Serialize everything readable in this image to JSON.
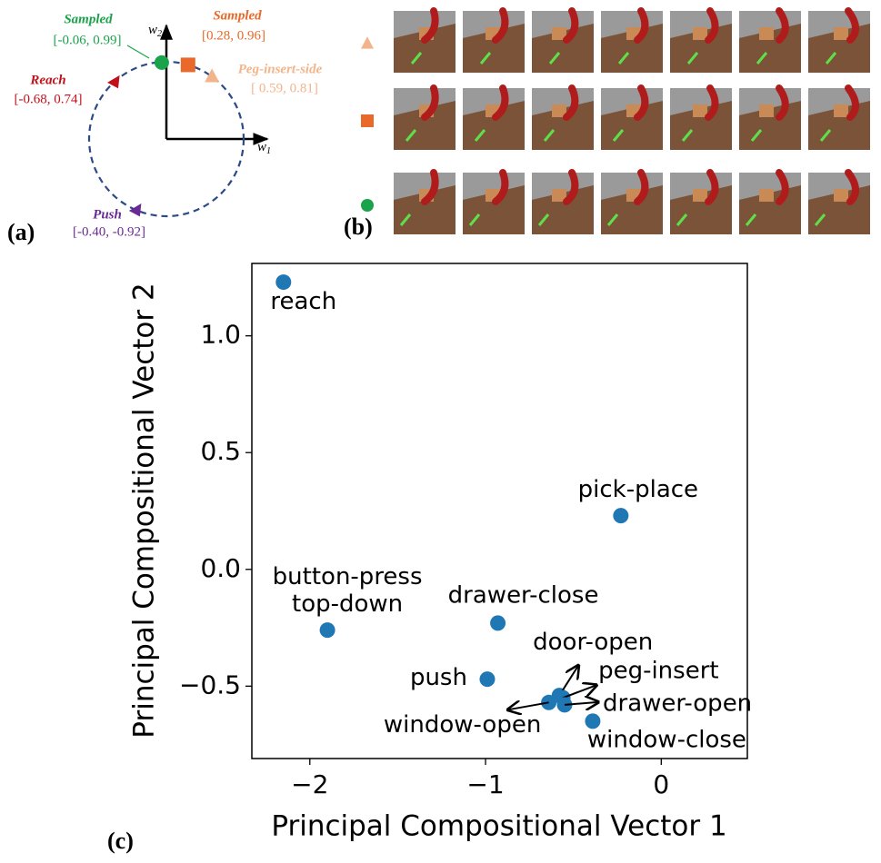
{
  "panel_a": {
    "label": "(a)",
    "y_axis": {
      "main": "w",
      "sub": "2"
    },
    "x_axis": {
      "main": "w",
      "sub": "1"
    },
    "points": [
      {
        "name": "Sampled",
        "coords": "[-0.06, 0.99]",
        "x": -0.06,
        "y": 0.99,
        "color": "#1aa34a",
        "marker": "circle"
      },
      {
        "name": "Sampled",
        "coords": "[0.28, 0.96]",
        "x": 0.28,
        "y": 0.96,
        "color": "#e8692a",
        "marker": "square"
      },
      {
        "name": "Peg-insert-side",
        "coords": "[ 0.59, 0.81]",
        "x": 0.59,
        "y": 0.81,
        "color": "#f2b48a",
        "marker": "triangle"
      },
      {
        "name": "Reach",
        "coords": "[-0.68, 0.74]",
        "x": -0.68,
        "y": 0.74,
        "color": "#c0111a",
        "marker": "triangle-left"
      },
      {
        "name": "Push",
        "coords": "[-0.40, -0.92]",
        "x": -0.4,
        "y": -0.92,
        "color": "#6a2a96",
        "marker": "triangle-left"
      }
    ]
  },
  "panel_b": {
    "label": "(b)",
    "frames_per_row": 7,
    "rows": [
      {
        "marker": "triangle",
        "color": "#f2b48a"
      },
      {
        "marker": "square",
        "color": "#e8692a"
      },
      {
        "marker": "circle",
        "color": "#1aa34a"
      }
    ]
  },
  "chart_data": {
    "type": "scatter",
    "panel_label": "(c)",
    "x_label": "Principal Compositional Vector 1",
    "y_label": "Principal Compositional Vector 2",
    "color": "#1f77b4",
    "x": [
      -2.15,
      -0.23,
      -1.9,
      -0.93,
      -0.99,
      -0.58,
      -0.56,
      -0.55,
      -0.64,
      -0.39
    ],
    "values": [
      1.23,
      0.23,
      -0.26,
      -0.23,
      -0.47,
      -0.54,
      -0.55,
      -0.58,
      -0.57,
      -0.65
    ],
    "point_labels": [
      [
        "reach"
      ],
      [
        "pick-place"
      ],
      [
        "button-press",
        "top-down"
      ],
      [
        "drawer-close"
      ],
      [
        "push"
      ],
      [
        "door-open"
      ],
      [
        "peg-insert"
      ],
      [
        "drawer-open"
      ],
      [
        "window-open"
      ],
      [
        "window-close"
      ]
    ],
    "xlim": [
      -2.33,
      0.49
    ],
    "ylim": [
      -0.81,
      1.31
    ],
    "xticks": [
      {
        "value": -2,
        "label": "−2"
      },
      {
        "value": -1,
        "label": "−1"
      },
      0
    ],
    "yticks": [
      {
        "value": -0.5,
        "label": "−0.5"
      },
      {
        "value": 0.0,
        "label": "0.0"
      },
      {
        "value": 0.5,
        "label": "0.5"
      },
      {
        "value": 1.0,
        "label": "1.0"
      }
    ]
  }
}
